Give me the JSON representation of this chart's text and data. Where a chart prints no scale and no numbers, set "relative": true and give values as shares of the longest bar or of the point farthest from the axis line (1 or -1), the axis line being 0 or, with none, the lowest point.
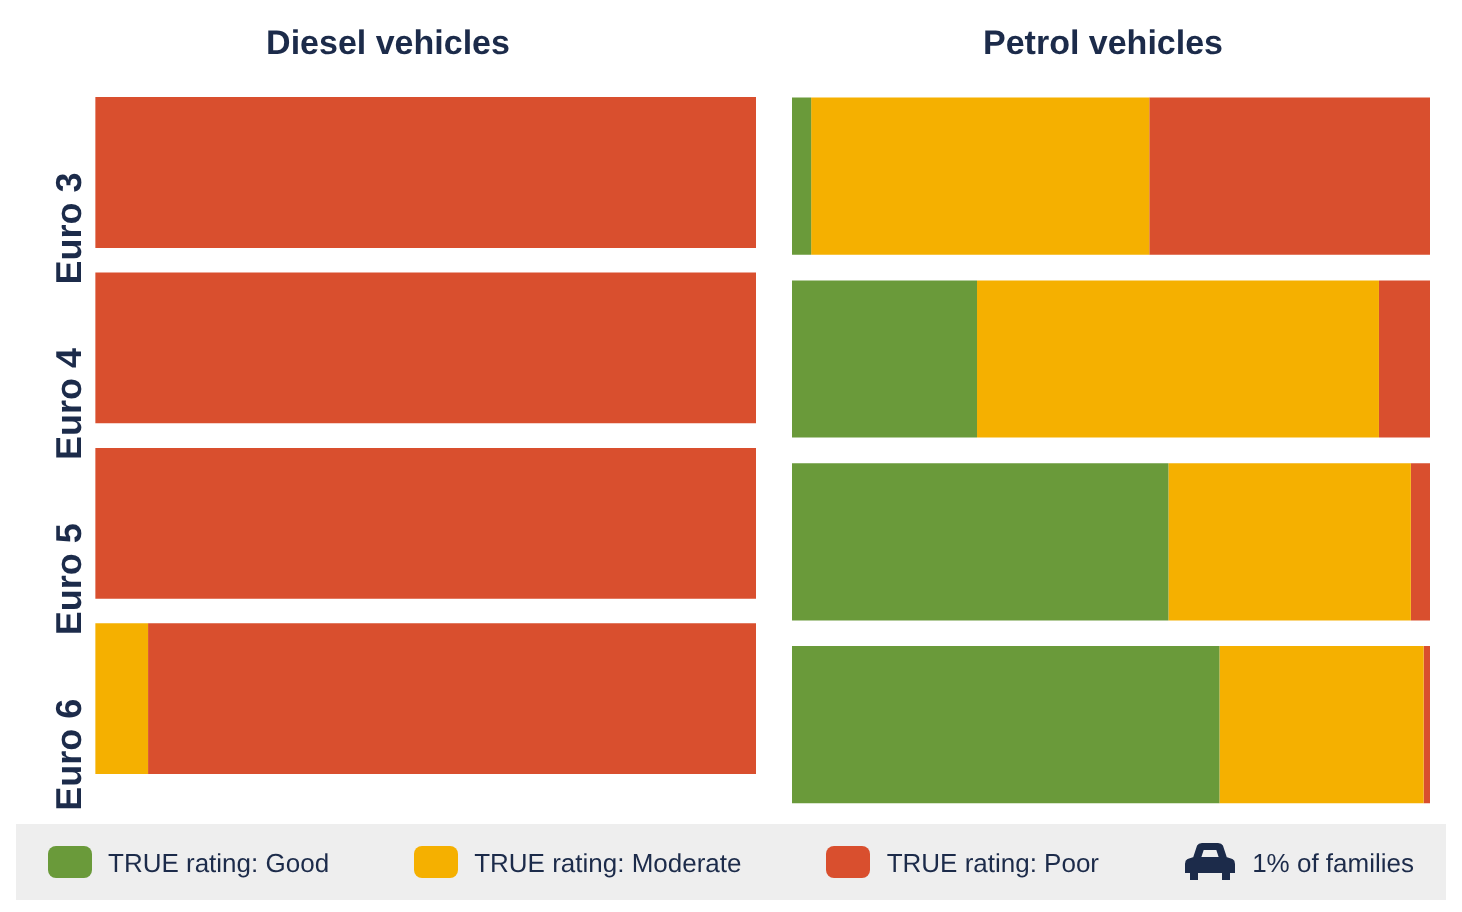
{
  "chart_data": [
    {
      "type": "bar",
      "title": "Diesel vehicles",
      "orientation": "horizontal",
      "stacked": true,
      "relative": true,
      "tick_labels": "y",
      "legend": "bottom",
      "categories": [
        "Euro 3",
        "Euro 4",
        "Euro 5",
        "Euro 6"
      ],
      "series": [
        {
          "name": "TRUE rating: Good",
          "color": "#6a9a3a",
          "values": [
            0,
            0,
            0,
            0
          ]
        },
        {
          "name": "TRUE rating: Moderate",
          "color": "#f5b000",
          "values": [
            0,
            0,
            0,
            0.08
          ]
        },
        {
          "name": "TRUE rating: Poor",
          "color": "#d94f2e",
          "values": [
            1,
            1,
            1,
            0.92
          ]
        }
      ],
      "annotations": [
        "1% of families"
      ]
    },
    {
      "type": "bar",
      "title": "Petrol vehicles",
      "orientation": "horizontal",
      "stacked": true,
      "relative": true,
      "tick_labels": false,
      "categories": [
        null,
        null,
        null,
        null
      ],
      "series": [
        {
          "color": "#6a9a3a",
          "values": [
            0.03,
            0.29,
            0.59,
            0.67
          ]
        },
        {
          "color": "#f5b000",
          "values": [
            0.53,
            0.63,
            0.38,
            0.32
          ]
        },
        {
          "color": "#d94f2e",
          "values": [
            0.44,
            0.08,
            0.03,
            0.01
          ]
        }
      ]
    }
  ]
}
